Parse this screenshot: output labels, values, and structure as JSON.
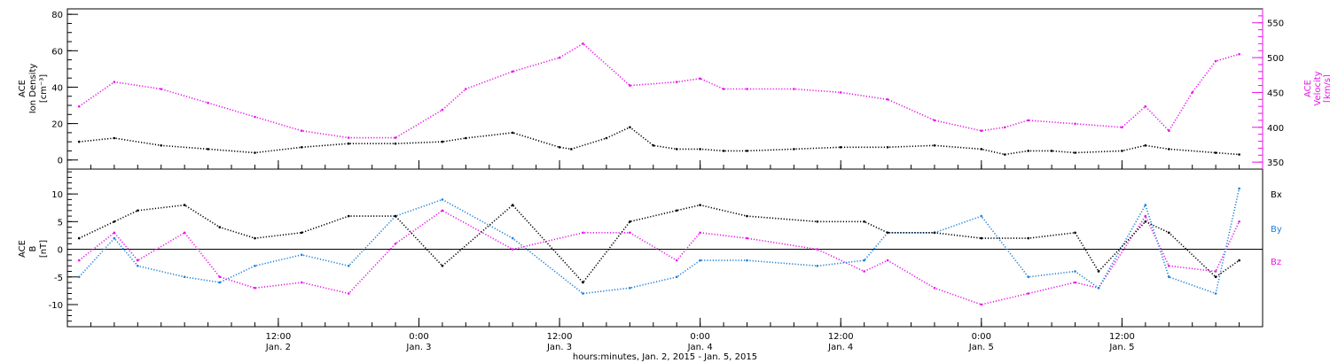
{
  "colors": {
    "density": "#000000",
    "velocity": "#e815e8",
    "bx": "#000000",
    "by": "#1f7fd6",
    "bz": "#e815e8"
  },
  "chart_data": [
    {
      "type": "scatter",
      "panel": "top",
      "left_label": [
        "ACE",
        "Ion Density",
        "[cm⁻³]"
      ],
      "right_label": [
        "ACE",
        "Velocity",
        "[km/s]"
      ],
      "y_left": {
        "range": [
          -5,
          83
        ],
        "ticks": [
          0,
          20,
          40,
          60,
          80
        ]
      },
      "y_right": {
        "range": [
          340,
          570
        ],
        "ticks": [
          350,
          400,
          450,
          500,
          550
        ]
      },
      "x_hours_range": [
        -18,
        84
      ],
      "series": [
        {
          "name": "Ion Density",
          "axis": "left",
          "x_hours": [
            -17,
            -14,
            -10,
            -6,
            -2,
            2,
            6,
            10,
            14,
            16,
            20,
            24,
            25,
            28,
            30,
            32,
            34,
            36,
            38,
            40,
            44,
            48,
            52,
            56,
            60,
            62,
            64,
            66,
            68,
            72,
            74,
            76,
            80,
            82
          ],
          "values": [
            10,
            12,
            8,
            6,
            4,
            7,
            9,
            9,
            10,
            12,
            15,
            7,
            6,
            12,
            18,
            8,
            6,
            6,
            5,
            5,
            6,
            7,
            7,
            8,
            6,
            3,
            5,
            5,
            4,
            5,
            8,
            6,
            4,
            3
          ]
        },
        {
          "name": "Velocity",
          "axis": "right",
          "x_hours": [
            -17,
            -14,
            -10,
            -6,
            -2,
            2,
            6,
            10,
            14,
            16,
            20,
            24,
            26,
            30,
            34,
            36,
            38,
            40,
            44,
            48,
            52,
            56,
            60,
            62,
            64,
            68,
            72,
            74,
            76,
            78,
            80,
            82
          ],
          "values": [
            430,
            465,
            455,
            435,
            415,
            395,
            385,
            385,
            425,
            455,
            480,
            500,
            520,
            460,
            465,
            470,
            455,
            455,
            455,
            450,
            440,
            410,
            395,
            400,
            410,
            405,
            400,
            430,
            395,
            450,
            495,
            505
          ]
        }
      ]
    },
    {
      "type": "scatter",
      "panel": "bottom",
      "left_label": [
        "ACE",
        "B",
        "[nT]"
      ],
      "y_left": {
        "range": [
          -14,
          14.5
        ],
        "ticks": [
          -10,
          -5,
          0,
          5,
          10
        ]
      },
      "x_hours_range": [
        -18,
        84
      ],
      "zero_line": true,
      "legend": [
        "Bx",
        "By",
        "Bz"
      ],
      "legend_position": "right",
      "series": [
        {
          "name": "Bx",
          "x_hours": [
            -17,
            -14,
            -12,
            -8,
            -5,
            -2,
            2,
            6,
            10,
            14,
            20,
            26,
            30,
            34,
            36,
            40,
            46,
            50,
            52,
            56,
            60,
            64,
            68,
            70,
            74,
            76,
            80,
            82
          ],
          "values": [
            2,
            5,
            7,
            8,
            4,
            2,
            3,
            6,
            6,
            -3,
            8,
            -6,
            5,
            7,
            8,
            6,
            5,
            5,
            3,
            3,
            2,
            2,
            3,
            -4,
            5,
            3,
            -5,
            -2
          ]
        },
        {
          "name": "By",
          "x_hours": [
            -17,
            -14,
            -12,
            -8,
            -5,
            -2,
            2,
            6,
            10,
            14,
            20,
            26,
            30,
            34,
            36,
            40,
            46,
            50,
            52,
            56,
            60,
            64,
            68,
            70,
            74,
            76,
            80,
            82
          ],
          "values": [
            -5,
            2,
            -3,
            -5,
            -6,
            -3,
            -1,
            -3,
            6,
            9,
            2,
            -8,
            -7,
            -5,
            -2,
            -2,
            -3,
            -2,
            3,
            3,
            6,
            -5,
            -4,
            -7,
            8,
            -5,
            -8,
            11
          ]
        },
        {
          "name": "Bz",
          "x_hours": [
            -17,
            -14,
            -12,
            -8,
            -5,
            -2,
            2,
            6,
            10,
            14,
            20,
            26,
            30,
            34,
            36,
            40,
            46,
            50,
            52,
            56,
            60,
            64,
            68,
            70,
            74,
            76,
            80,
            82
          ],
          "values": [
            -2,
            3,
            -2,
            3,
            -5,
            -7,
            -6,
            -8,
            1,
            7,
            0,
            3,
            3,
            -2,
            3,
            2,
            0,
            -4,
            -2,
            -7,
            -10,
            -8,
            -6,
            -7,
            6,
            -3,
            -4,
            5
          ]
        }
      ]
    }
  ],
  "x_axis": {
    "ticks": [
      {
        "hours": 0,
        "time": "12:00",
        "date": "Jan. 2"
      },
      {
        "hours": 12,
        "time": "0:00",
        "date": "Jan. 3"
      },
      {
        "hours": 24,
        "time": "12:00",
        "date": "Jan. 3"
      },
      {
        "hours": 36,
        "time": "0:00",
        "date": "Jan. 4"
      },
      {
        "hours": 48,
        "time": "12:00",
        "date": "Jan. 4"
      },
      {
        "hours": 60,
        "time": "0:00",
        "date": "Jan. 5"
      },
      {
        "hours": 72,
        "time": "12:00",
        "date": "Jan. 5"
      }
    ],
    "label": "hours:minutes, Jan.  2, 2015 - Jan.  5, 2015"
  }
}
